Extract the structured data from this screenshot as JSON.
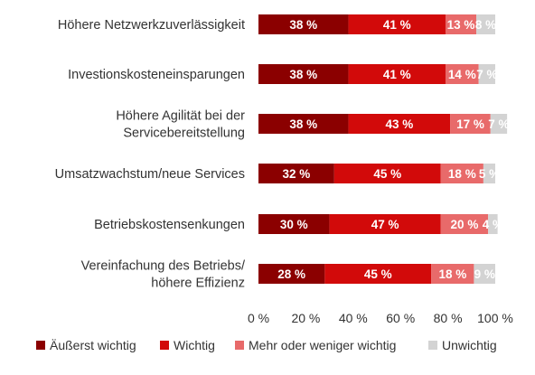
{
  "chart_data": {
    "type": "bar",
    "orientation": "horizontal",
    "stacked": true,
    "categories": [
      "Höhere Netzwerkzuverlässigkeit",
      "Investionskosteneinsparungen",
      "Höhere Agilität bei der Servicebereitstellung",
      "Umsatzwachstum/neue Services",
      "Betriebskostensenkungen",
      "Vereinfachung des Betriebs/ höhere Effizienz"
    ],
    "category_lines": [
      [
        "Höhere Netzwerkzuverlässigkeit"
      ],
      [
        "Investionskosteneinsparungen"
      ],
      [
        "Höhere Agilität bei der",
        "Servicebereitstellung"
      ],
      [
        "Umsatzwachstum/neue Services"
      ],
      [
        "Betriebskostensenkungen"
      ],
      [
        "Vereinfachung des Betriebs/",
        "höhere Effizienz"
      ]
    ],
    "series": [
      {
        "name": "Äußerst wichtig",
        "color": "#8b0000",
        "values": [
          38,
          38,
          38,
          32,
          30,
          28
        ],
        "labels": [
          "38 %",
          "38 %",
          "38 %",
          "32 %",
          "30 %",
          "28 %"
        ]
      },
      {
        "name": "Wichtig",
        "color": "#d20a0a",
        "values": [
          41,
          41,
          43,
          45,
          47,
          45
        ],
        "labels": [
          "41 %",
          "41 %",
          "43 %",
          "45 %",
          "47 %",
          "45 %"
        ]
      },
      {
        "name": "Mehr oder weniger wichtig",
        "color": "#e86a6a",
        "values": [
          13,
          14,
          17,
          18,
          20,
          18
        ],
        "labels": [
          "13 %",
          "14 %",
          "17 %",
          "18 %",
          "20 %",
          "18 %"
        ]
      },
      {
        "name": "Unwichtig",
        "color": "#d3d3d3",
        "values": [
          8,
          7,
          7,
          5,
          4,
          9
        ],
        "labels": [
          "8 %",
          "7 %",
          "7 %",
          "5 %",
          "4 %",
          "9 %"
        ]
      }
    ],
    "xlim": [
      0,
      100
    ],
    "xticks": [
      "0 %",
      "20 %",
      "40 %",
      "60 %",
      "80 %",
      "100 %"
    ],
    "grid": false,
    "legend_position": "bottom"
  }
}
